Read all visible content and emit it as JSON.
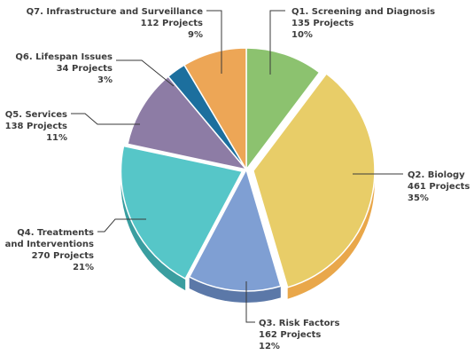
{
  "chart_data": {
    "type": "pie",
    "title": "",
    "unit": "Projects",
    "slices": [
      {
        "label": "Q1. Screening and Diagnosis",
        "value": 135,
        "value_text": "135 Projects",
        "percent_text": "10%",
        "color": "#8cc26f",
        "side": "#5f9549"
      },
      {
        "label": "Q2. Biology",
        "value": 461,
        "value_text": "461 Projects",
        "percent_text": "35%",
        "color": "#e8cd68",
        "side": "#e9a74a"
      },
      {
        "label": "Q3. Risk Factors",
        "value": 162,
        "value_text": "162 Projects",
        "percent_text": "12%",
        "color": "#7f9fd3",
        "side": "#5b78a8"
      },
      {
        "label": "Q4. Treatments and Interventions",
        "label_lines": [
          "Q4. Treatments",
          "and Interventions"
        ],
        "value": 270,
        "value_text": "270 Projects",
        "percent_text": "21%",
        "color": "#56c6c8",
        "side": "#3a9ea0"
      },
      {
        "label": "Q5. Services",
        "value": 138,
        "value_text": "138 Projects",
        "percent_text": "11%",
        "color": "#8d7ca5",
        "side": "#685a7e"
      },
      {
        "label": "Q6. Lifespan Issues",
        "value": 34,
        "value_text": "34 Projects",
        "percent_text": "3%",
        "color": "#1c6f9e",
        "side": "#10506f"
      },
      {
        "label": "Q7. Infrastructure and Surveillance",
        "value": 112,
        "value_text": "112 Projects",
        "percent_text": "9%",
        "color": "#eda656",
        "side": "#c98233"
      }
    ]
  }
}
